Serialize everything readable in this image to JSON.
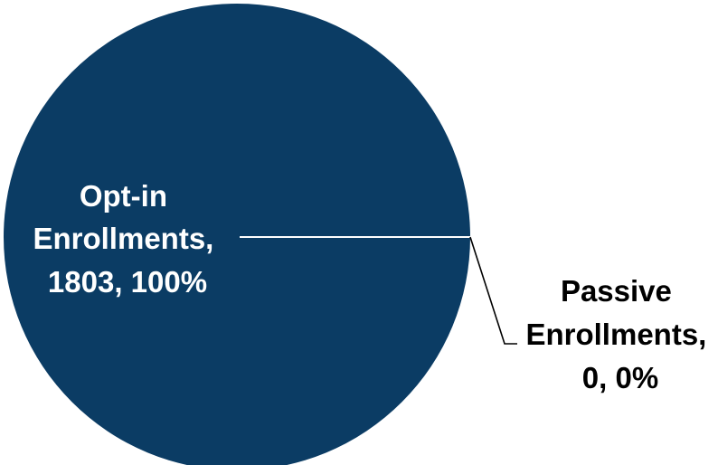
{
  "chart_data": {
    "type": "pie",
    "slices": [
      {
        "label": "Opt-in Enrollments",
        "value": 1803,
        "percent": "100%",
        "color": "#0b3c64",
        "label_lines": [
          "Opt-in",
          "Enrollments,",
          "1803, 100%"
        ]
      },
      {
        "label": "Passive Enrollments",
        "value": 0,
        "percent": "0%",
        "color": "#0b3c64",
        "label_lines": [
          "Passive",
          "Enrollments,",
          "0, 0%"
        ]
      }
    ]
  },
  "colors": {
    "slice": "#0b3c64",
    "inner_label": "#ffffff",
    "outer_label": "#000000",
    "inner_leader": "#ffffff",
    "outer_leader": "#000000"
  }
}
